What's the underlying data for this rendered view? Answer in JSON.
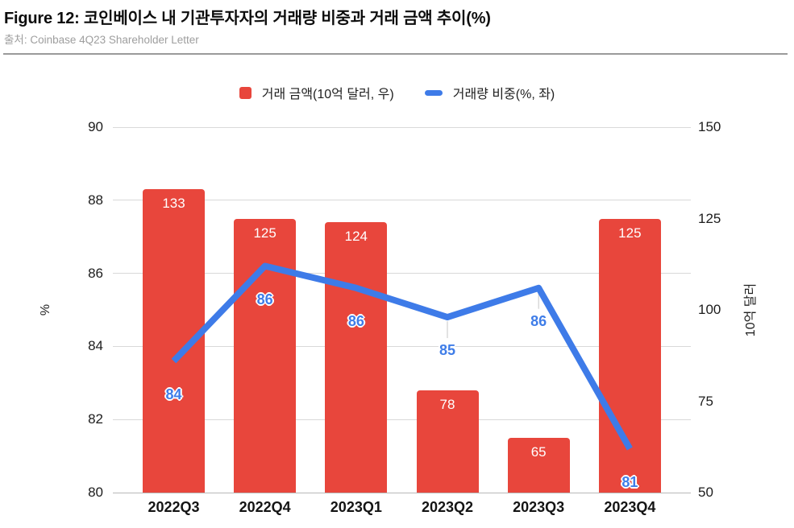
{
  "header": {
    "title": "Figure 12: 코인베이스 내 기관투자자의 거래량 비중과 거래 금액 추이(%)",
    "source": "출처: Coinbase 4Q23 Shareholder Letter"
  },
  "chart_data": {
    "type": "combo",
    "categories": [
      "2022Q3",
      "2022Q4",
      "2023Q1",
      "2023Q2",
      "2023Q3",
      "2023Q4"
    ],
    "series": [
      {
        "name": "거래 금액(10억 달러, 우)",
        "type": "bar",
        "axis": "right",
        "color": "#E8463C",
        "label_color": "#ffffff",
        "values": [
          133,
          125,
          124,
          78,
          65,
          125
        ]
      },
      {
        "name": "거래량 비중(%, 좌)",
        "type": "line",
        "axis": "left",
        "color": "#3E7BE8",
        "label_color": "#3F7DE8",
        "values": [
          84,
          86,
          86,
          85,
          86,
          81
        ],
        "plotted_values": [
          83.6,
          86.2,
          85.6,
          84.8,
          85.6,
          81.2
        ]
      }
    ],
    "left_axis": {
      "label": "%",
      "range": [
        80,
        90
      ],
      "ticks": [
        80,
        82,
        84,
        86,
        88,
        90
      ]
    },
    "right_axis": {
      "label": "10억 달러",
      "range": [
        50,
        150
      ],
      "ticks": [
        50,
        75,
        100,
        125,
        150
      ]
    },
    "grid": true,
    "legend_position": "top",
    "label_leader_indices": [
      3,
      4
    ],
    "grid_color": "#d9d9d9",
    "baseline_color": "#b7b7b7"
  }
}
